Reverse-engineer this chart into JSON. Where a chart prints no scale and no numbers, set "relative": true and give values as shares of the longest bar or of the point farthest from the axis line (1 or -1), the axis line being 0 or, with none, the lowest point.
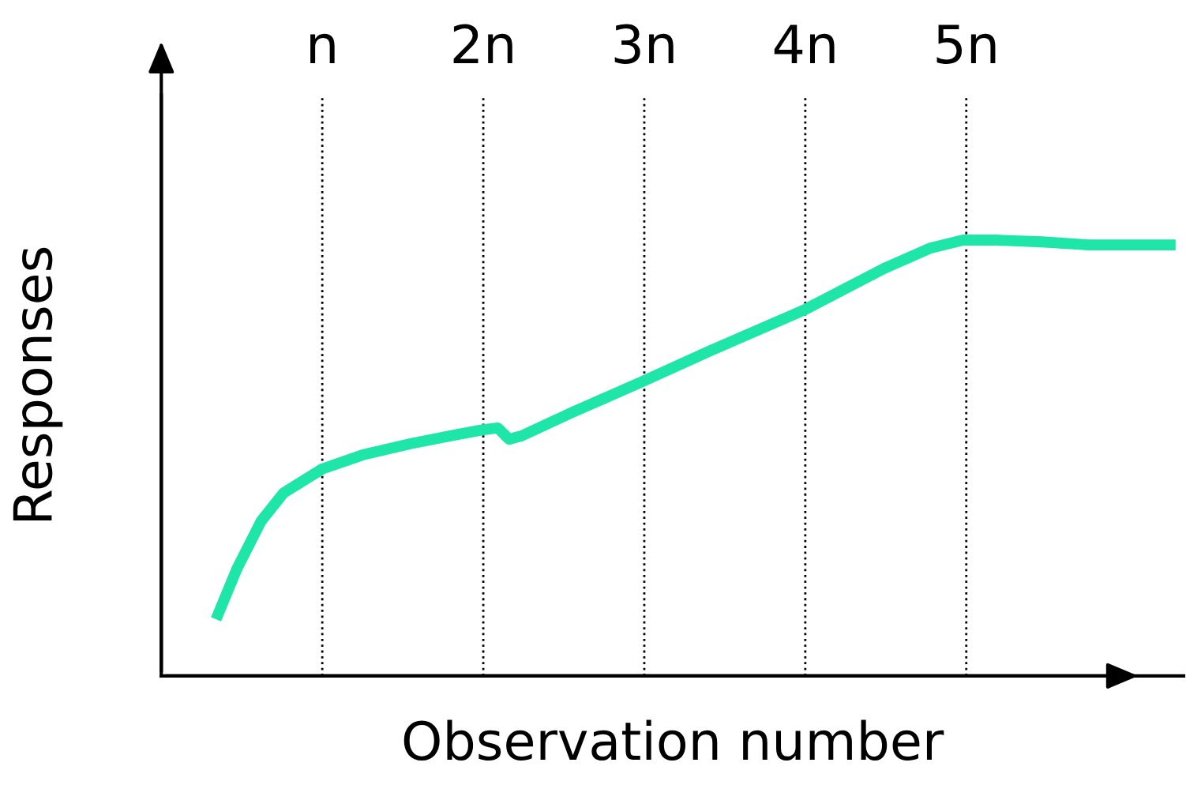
{
  "chart_data": {
    "type": "line",
    "xlabel": "Observation number",
    "ylabel": "Responses",
    "relative": true,
    "tick_labels": "x",
    "grid": "x",
    "legend": false,
    "marker": "none",
    "line_style": "solid",
    "xlim": [
      0,
      6.35
    ],
    "xticks": [
      {
        "value": 1,
        "label": "n"
      },
      {
        "value": 2,
        "label": "2n"
      },
      {
        "value": 3,
        "label": "3n"
      },
      {
        "value": 4,
        "label": "4n"
      },
      {
        "value": 5,
        "label": "5n"
      }
    ],
    "x": [
      0.34,
      0.47,
      0.62,
      0.76,
      1.0,
      1.25,
      1.55,
      1.84,
      2.0,
      2.09,
      2.16,
      2.24,
      2.53,
      2.98,
      3.41,
      4.0,
      4.49,
      4.78,
      4.98,
      5.18,
      5.47,
      5.76,
      6.3
    ],
    "series": [
      {
        "color": "#1ee6a8",
        "values": [
          0.13,
          0.246,
          0.355,
          0.42,
          0.475,
          0.507,
          0.533,
          0.554,
          0.565,
          0.569,
          0.543,
          0.551,
          0.601,
          0.674,
          0.746,
          0.841,
          0.935,
          0.982,
          1.0,
          1.0,
          0.996,
          0.989,
          0.989
        ]
      }
    ]
  }
}
